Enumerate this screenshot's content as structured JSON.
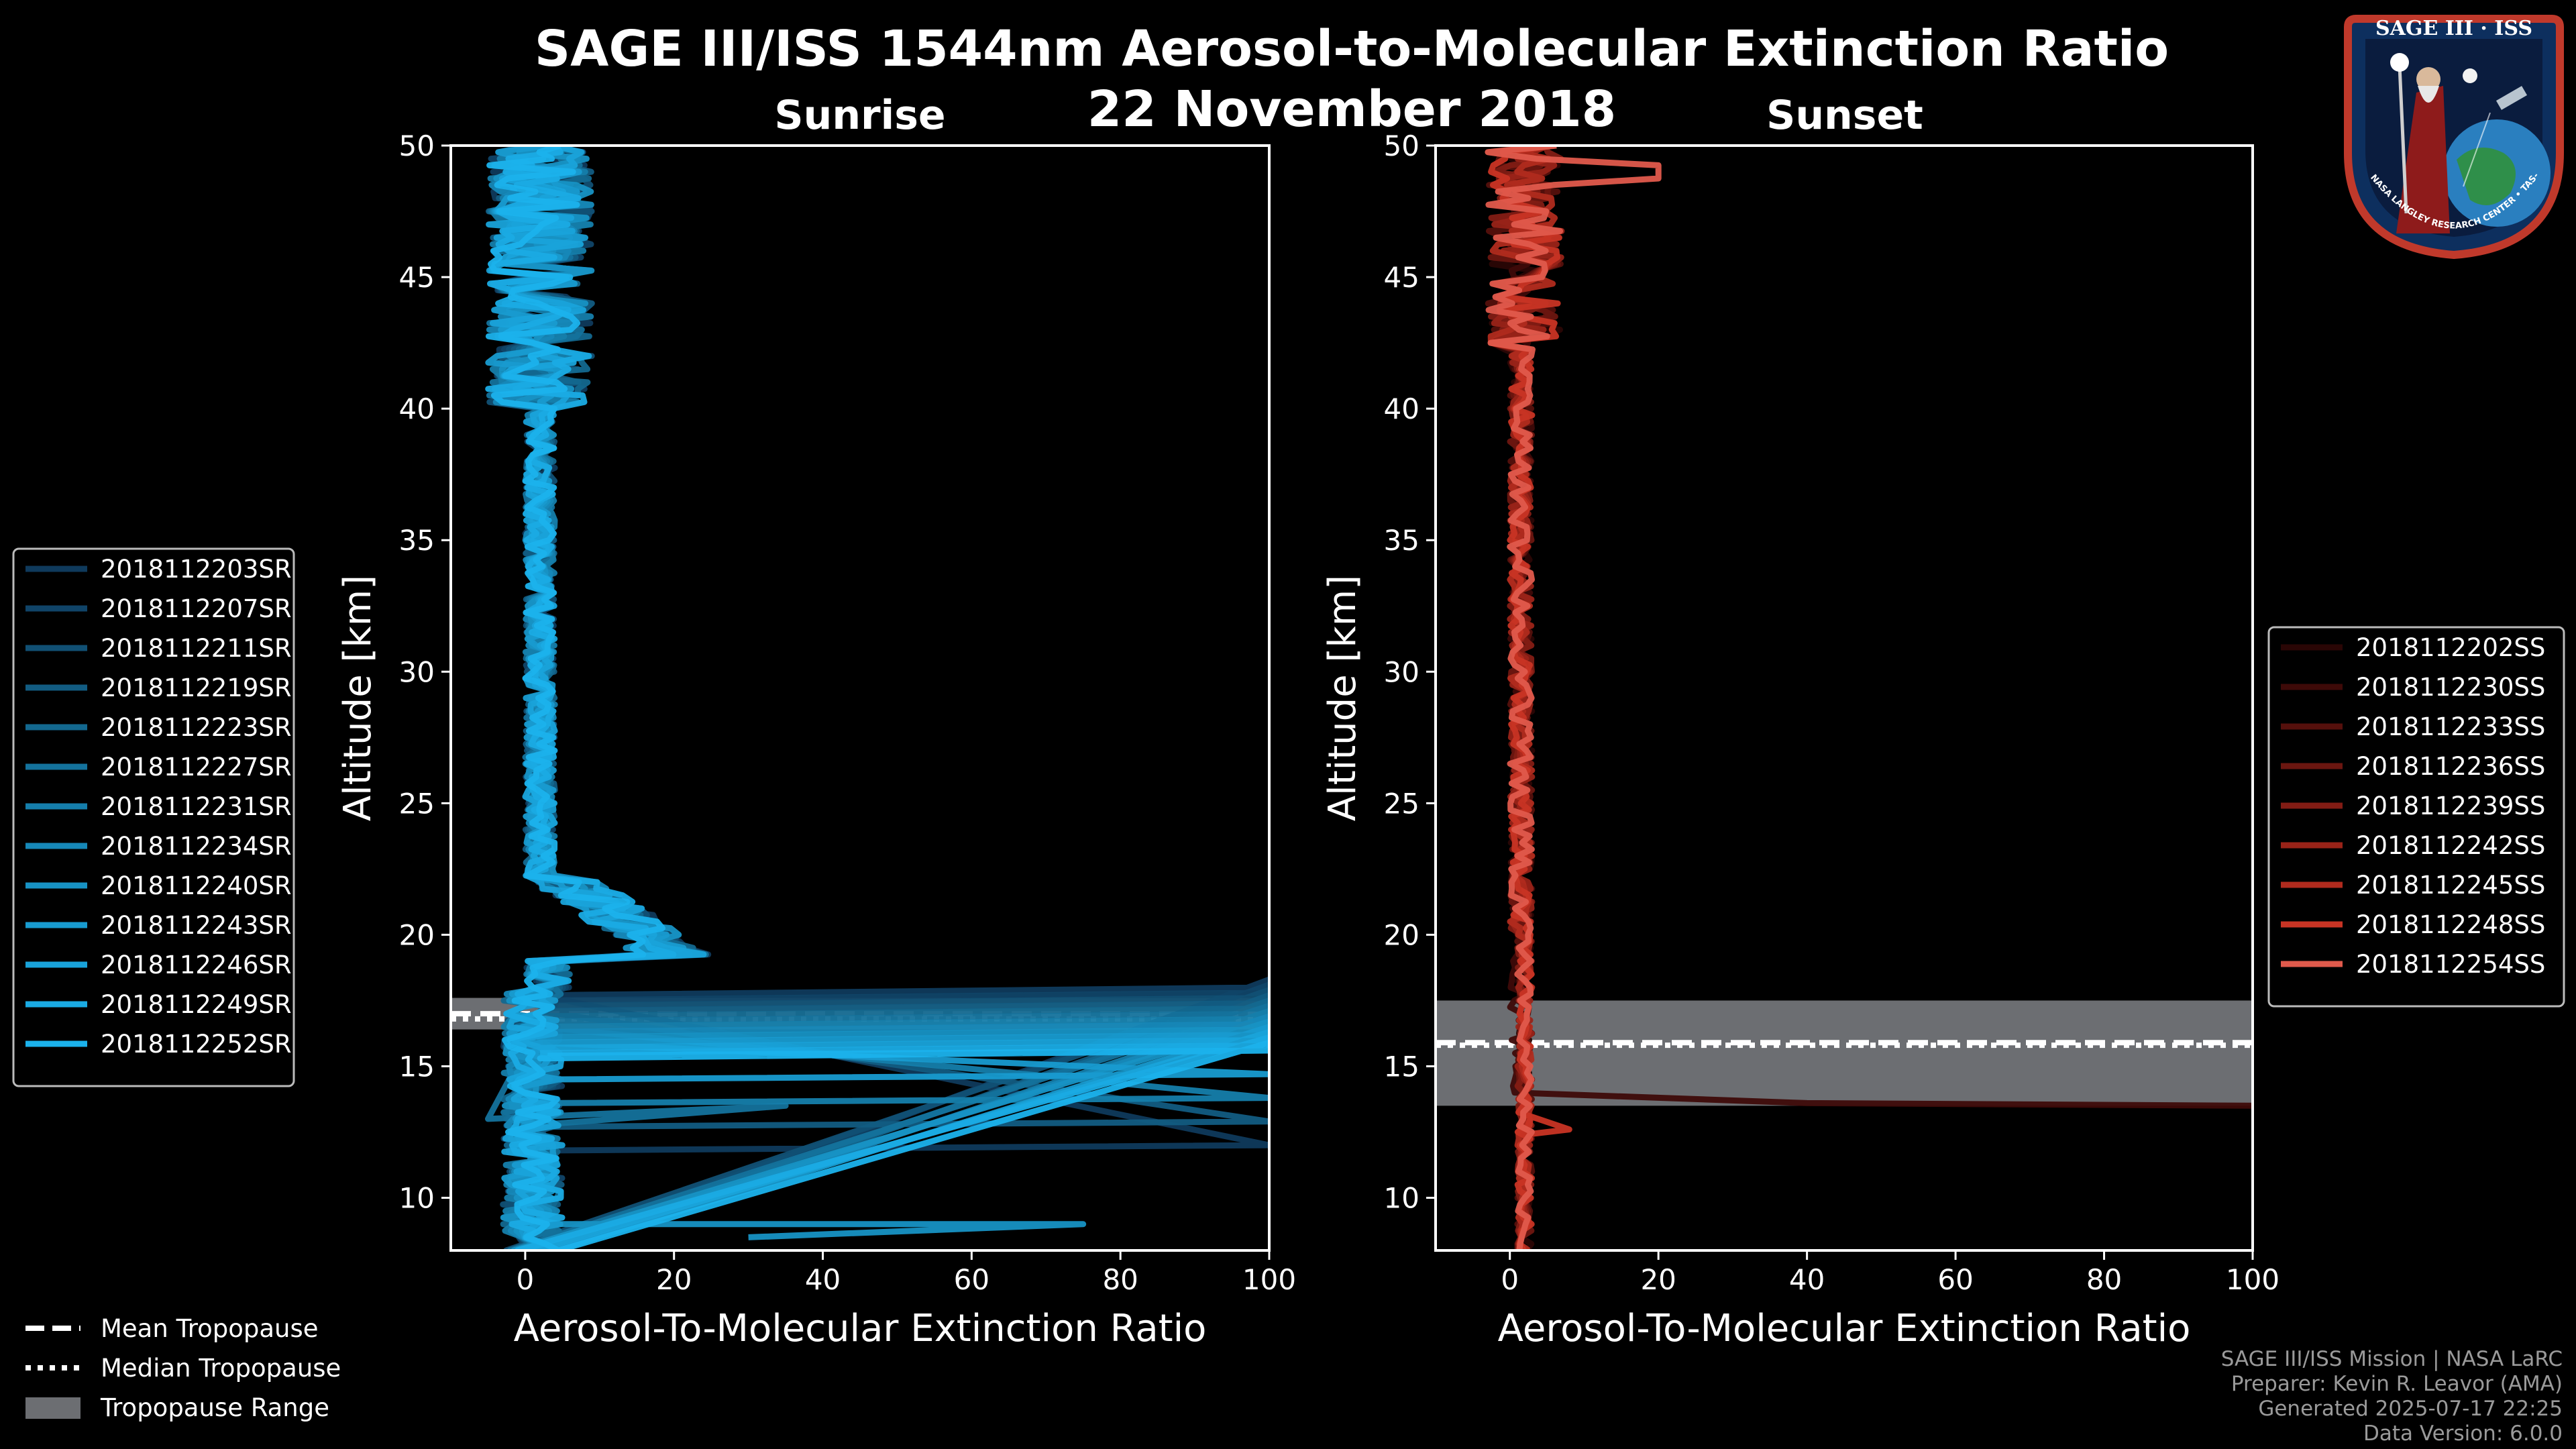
{
  "title": "SAGE III/ISS 1544nm Aerosol-to-Molecular Extinction Ratio",
  "date": "22 November 2018",
  "logo": {
    "text": "SAGE III · ISS",
    "ring_text": "BALL • NASA LANGLEY RESEARCH CENTER • TAS-I • ESA"
  },
  "footer": [
    "SAGE III/ISS Mission | NASA LaRC",
    "Preparer: Kevin R. Leavor (AMA)",
    "Generated 2025-07-17 22:25",
    "Data Version: 6.0.0"
  ],
  "tropopause_legend": [
    {
      "label": "Mean Tropopause",
      "style": "dashed"
    },
    {
      "label": "Median Tropopause",
      "style": "dotted"
    },
    {
      "label": "Tropopause Range",
      "style": "patch"
    }
  ],
  "chart_data": [
    {
      "type": "line",
      "subtitle": "Sunrise",
      "xlabel": "Aerosol-To-Molecular Extinction Ratio",
      "ylabel": "Altitude [km]",
      "xlim": [
        -10,
        100
      ],
      "ylim": [
        8,
        50
      ],
      "xticks": [
        0,
        20,
        40,
        60,
        80,
        100
      ],
      "yticks": [
        10,
        15,
        20,
        25,
        30,
        35,
        40,
        45,
        50
      ],
      "tropopause": {
        "mean": 17.0,
        "median": 16.8,
        "range": [
          16.4,
          17.6
        ]
      },
      "series_colors": [
        "#0f3a5c",
        "#104468",
        "#115074",
        "#125c82",
        "#13688f",
        "#14729c",
        "#157eab",
        "#1688b8",
        "#1792c4",
        "#189bd0",
        "#19a3da",
        "#1aabe4",
        "#1bb2ec"
      ],
      "series": [
        {
          "name": "2018112203SR"
        },
        {
          "name": "2018112207SR"
        },
        {
          "name": "2018112211SR"
        },
        {
          "name": "2018112219SR"
        },
        {
          "name": "2018112223SR"
        },
        {
          "name": "2018112227SR"
        },
        {
          "name": "2018112231SR"
        },
        {
          "name": "2018112234SR"
        },
        {
          "name": "2018112240SR"
        },
        {
          "name": "2018112243SR"
        },
        {
          "name": "2018112246SR"
        },
        {
          "name": "2018112249SR"
        },
        {
          "name": "2018112252SR"
        }
      ]
    },
    {
      "type": "line",
      "subtitle": "Sunset",
      "xlabel": "Aerosol-To-Molecular Extinction Ratio",
      "ylabel": "Altitude [km]",
      "xlim": [
        -10,
        100
      ],
      "ylim": [
        8,
        50
      ],
      "xticks": [
        0,
        20,
        40,
        60,
        80,
        100
      ],
      "yticks": [
        10,
        15,
        20,
        25,
        30,
        35,
        40,
        45,
        50
      ],
      "tropopause": {
        "mean": 15.9,
        "median": 15.8,
        "range": [
          13.5,
          17.5
        ]
      },
      "series_colors": [
        "#2a0605",
        "#3e0a08",
        "#55100c",
        "#6b1610",
        "#821c14",
        "#992318",
        "#b02b1e",
        "#c83424",
        "#e05a4c"
      ],
      "series": [
        {
          "name": "2018112202SS"
        },
        {
          "name": "2018112230SS"
        },
        {
          "name": "2018112233SS"
        },
        {
          "name": "2018112236SS"
        },
        {
          "name": "2018112239SS"
        },
        {
          "name": "2018112242SS"
        },
        {
          "name": "2018112245SS"
        },
        {
          "name": "2018112248SS"
        },
        {
          "name": "2018112254SS"
        }
      ]
    }
  ]
}
